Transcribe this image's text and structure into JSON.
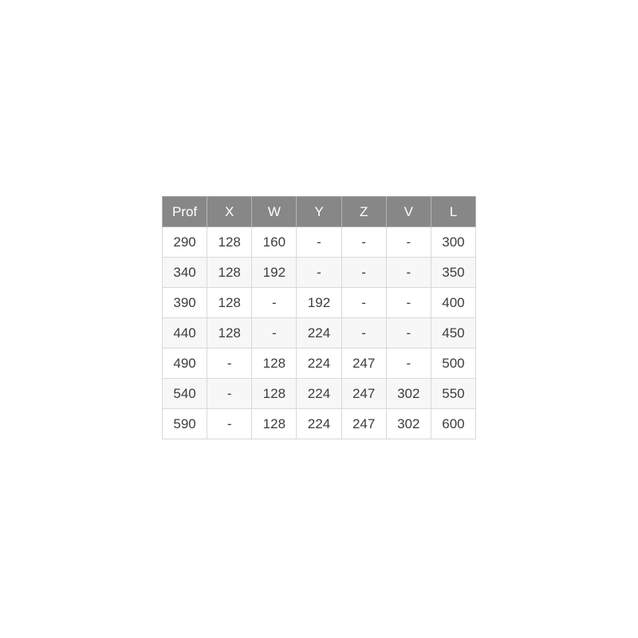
{
  "chart_data": {
    "type": "table",
    "columns": [
      "Prof",
      "X",
      "W",
      "Y",
      "Z",
      "V",
      "L"
    ],
    "rows": [
      [
        "290",
        "128",
        "160",
        "-",
        "-",
        "-",
        "300"
      ],
      [
        "340",
        "128",
        "192",
        "-",
        "-",
        "-",
        "350"
      ],
      [
        "390",
        "128",
        "-",
        "192",
        "-",
        "-",
        "400"
      ],
      [
        "440",
        "128",
        "-",
        "224",
        "-",
        "-",
        "450"
      ],
      [
        "490",
        "-",
        "128",
        "224",
        "247",
        "-",
        "500"
      ],
      [
        "540",
        "-",
        "128",
        "224",
        "247",
        "302",
        "550"
      ],
      [
        "590",
        "-",
        "128",
        "224",
        "247",
        "302",
        "600"
      ]
    ]
  },
  "colors": {
    "header_bg": "#878787",
    "header_text": "#ffffff",
    "row_bg": "#ffffff",
    "row_alt_bg": "#f7f7f7",
    "border": "#d9d9d9",
    "text": "#3d3d3d"
  }
}
